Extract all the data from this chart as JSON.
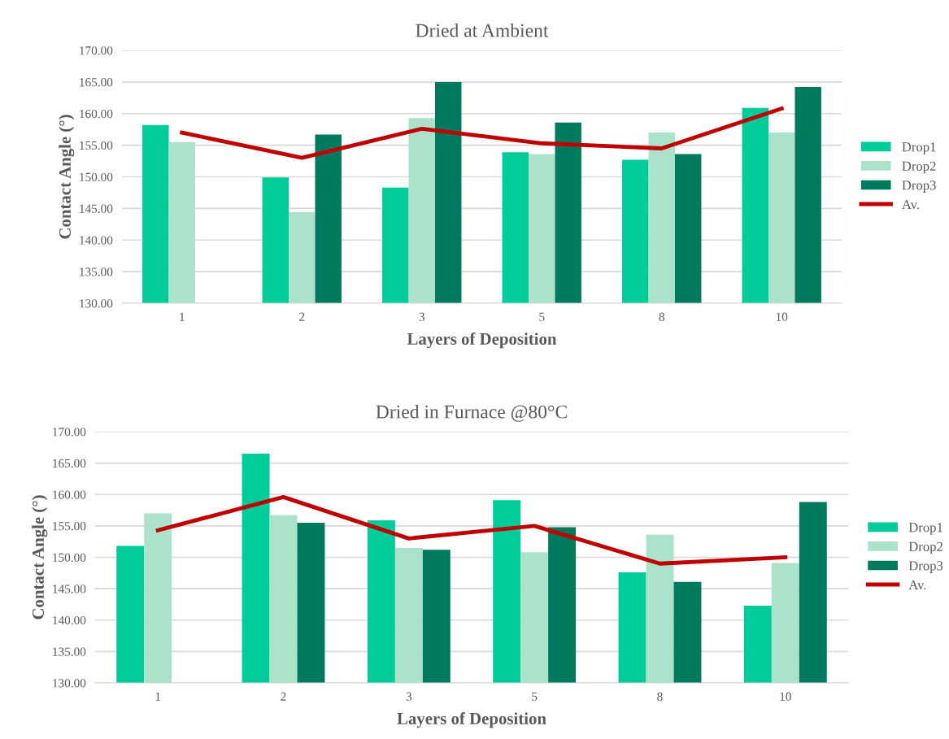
{
  "chart_data": [
    {
      "type": "bar",
      "title": "Dried at Ambient",
      "xlabel": "Layers of Deposition",
      "ylabel": "Contact Angle (°)",
      "categories": [
        "1",
        "2",
        "3",
        "5",
        "8",
        "10"
      ],
      "series": [
        {
          "name": "Drop1",
          "color": "#00cc99",
          "values": [
            158.2,
            149.9,
            148.3,
            153.9,
            152.7,
            160.9
          ]
        },
        {
          "name": "Drop2",
          "color": "#aae3c9",
          "values": [
            155.5,
            144.4,
            159.3,
            153.6,
            157.0,
            157.0
          ]
        },
        {
          "name": "Drop3",
          "color": "#007a5e",
          "values": [
            null,
            156.7,
            165.0,
            158.6,
            153.6,
            164.2
          ]
        },
        {
          "name": "Av.",
          "type": "line",
          "color": "#c00000",
          "values": [
            157.0,
            153.0,
            157.6,
            155.3,
            154.5,
            160.8
          ]
        }
      ],
      "ylim": [
        130,
        170
      ],
      "yticks": [
        {
          "value": 130,
          "label": "130.00"
        },
        {
          "value": 135,
          "label": "135.00"
        },
        {
          "value": 140,
          "label": "140.00"
        },
        {
          "value": 145,
          "label": "145.00"
        },
        {
          "value": 150,
          "label": "150.00"
        },
        {
          "value": 155,
          "label": "155.00"
        },
        {
          "value": 160,
          "label": "160.00"
        },
        {
          "value": 165,
          "label": "165.00"
        },
        {
          "value": 170,
          "label": "170.00"
        }
      ],
      "grid": "y",
      "legend": "right"
    },
    {
      "type": "bar",
      "title": "Dried in Furnace @80°C",
      "xlabel": "Layers of Deposition",
      "ylabel": "Contact Angle (°)",
      "categories": [
        "1",
        "2",
        "3",
        "5",
        "8",
        "10"
      ],
      "series": [
        {
          "name": "Drop1",
          "color": "#00cc99",
          "values": [
            151.8,
            166.5,
            155.9,
            159.1,
            147.6,
            142.3
          ]
        },
        {
          "name": "Drop2",
          "color": "#aae3c9",
          "values": [
            157.0,
            156.7,
            151.5,
            150.8,
            153.6,
            149.1
          ]
        },
        {
          "name": "Drop3",
          "color": "#007a5e",
          "values": [
            null,
            155.5,
            151.2,
            154.8,
            146.1,
            158.8
          ]
        },
        {
          "name": "Av.",
          "type": "line",
          "color": "#c00000",
          "values": [
            154.3,
            159.6,
            153.0,
            155.0,
            149.0,
            150.0
          ]
        }
      ],
      "ylim": [
        130,
        170
      ],
      "yticks": [
        {
          "value": 130,
          "label": "130.00"
        },
        {
          "value": 135,
          "label": "135.00"
        },
        {
          "value": 140,
          "label": "140.00"
        },
        {
          "value": 145,
          "label": "145.00"
        },
        {
          "value": 150,
          "label": "150.00"
        },
        {
          "value": 155,
          "label": "155.00"
        },
        {
          "value": 160,
          "label": "160.00"
        },
        {
          "value": 165,
          "label": "165.00"
        },
        {
          "value": 170,
          "label": "170.00"
        }
      ],
      "grid": "y",
      "legend": "right"
    }
  ]
}
